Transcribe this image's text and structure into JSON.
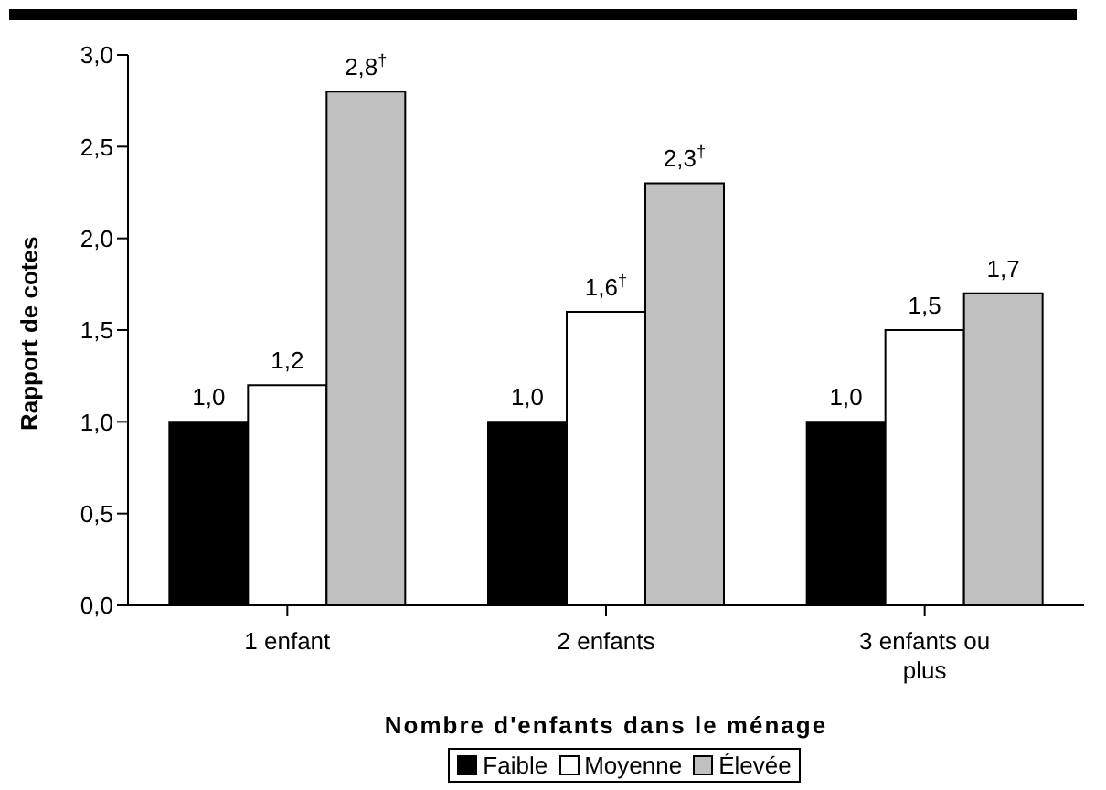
{
  "chart_data": {
    "type": "bar",
    "categories": [
      "1 enfant",
      "2 enfants",
      "3 enfants ou plus"
    ],
    "xlabel": "Nombre d'enfants dans le ménage",
    "ylabel": "Rapport de cotes",
    "series": [
      {
        "name": "Faible",
        "color": "#000000",
        "values": [
          1.0,
          1.0,
          1.0
        ],
        "value_labels": [
          "1,0",
          "1,0",
          "1,0"
        ]
      },
      {
        "name": "Moyenne",
        "color": "#ffffff",
        "values": [
          1.2,
          1.6,
          1.5
        ],
        "value_labels": [
          "1,2",
          "1,6$^{†}$",
          "1,5"
        ]
      },
      {
        "name": "Élevée",
        "color": "#c0c0c0",
        "values": [
          2.8,
          2.3,
          1.7
        ],
        "value_labels": [
          "2,8$^{†}$",
          "2,3$^{†}$",
          "1,7"
        ]
      }
    ],
    "ylim": [
      0,
      3
    ],
    "yticks": [
      {
        "value": 0,
        "label": "0,0"
      },
      {
        "value": 0.5,
        "label": "0,5"
      },
      {
        "value": 1,
        "label": "1,0"
      },
      {
        "value": 1.5,
        "label": "1,5"
      },
      {
        "value": 2,
        "label": "2,0"
      },
      {
        "value": 2.5,
        "label": "2,5"
      },
      {
        "value": 3,
        "label": "3,0"
      }
    ],
    "grid": false,
    "legend": "bottom"
  }
}
